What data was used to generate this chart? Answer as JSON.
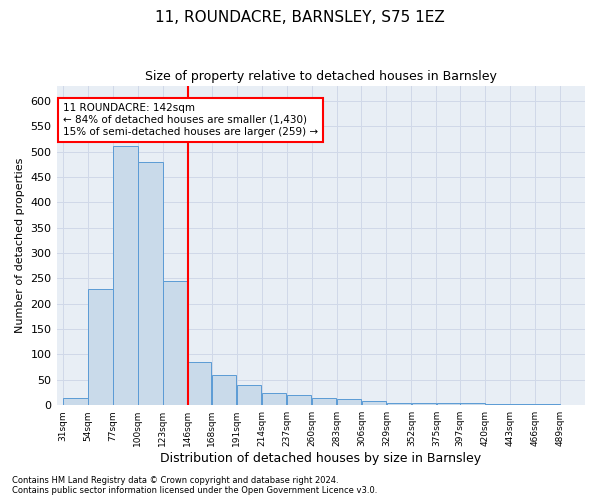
{
  "title1": "11, ROUNDACRE, BARNSLEY, S75 1EZ",
  "title2": "Size of property relative to detached houses in Barnsley",
  "xlabel": "Distribution of detached houses by size in Barnsley",
  "ylabel": "Number of detached properties",
  "footnote1": "Contains HM Land Registry data © Crown copyright and database right 2024.",
  "footnote2": "Contains public sector information licensed under the Open Government Licence v3.0.",
  "annotation_line1": "11 ROUNDACRE: 142sqm",
  "annotation_line2": "← 84% of detached houses are smaller (1,430)",
  "annotation_line3": "15% of semi-detached houses are larger (259) →",
  "bar_color": "#c9daea",
  "bar_edge_color": "#5b9bd5",
  "bar_left_edges": [
    31,
    54,
    77,
    100,
    123,
    146,
    168,
    191,
    214,
    237,
    260,
    283,
    306,
    329,
    352,
    375,
    397,
    420,
    443,
    466
  ],
  "bar_widths": [
    23,
    23,
    23,
    23,
    23,
    22,
    23,
    23,
    23,
    23,
    23,
    23,
    23,
    23,
    23,
    22,
    23,
    23,
    23,
    23
  ],
  "bar_heights": [
    15,
    230,
    510,
    480,
    245,
    85,
    60,
    40,
    25,
    20,
    15,
    12,
    8,
    5,
    5,
    4,
    4,
    2,
    2,
    2
  ],
  "ylim": [
    0,
    630
  ],
  "xlim": [
    25,
    512
  ],
  "yticks": [
    0,
    50,
    100,
    150,
    200,
    250,
    300,
    350,
    400,
    450,
    500,
    550,
    600
  ],
  "xtick_labels": [
    "31sqm",
    "54sqm",
    "77sqm",
    "100sqm",
    "123sqm",
    "146sqm",
    "168sqm",
    "191sqm",
    "214sqm",
    "237sqm",
    "260sqm",
    "283sqm",
    "306sqm",
    "329sqm",
    "352sqm",
    "375sqm",
    "397sqm",
    "420sqm",
    "443sqm",
    "466sqm",
    "489sqm"
  ],
  "xtick_positions": [
    31,
    54,
    77,
    100,
    123,
    146,
    168,
    191,
    214,
    237,
    260,
    283,
    306,
    329,
    352,
    375,
    397,
    420,
    443,
    466,
    489
  ],
  "red_line_x": 146,
  "annotation_box_facecolor": "white",
  "annotation_box_edgecolor": "red",
  "grid_color": "#d0d8e8",
  "bg_color": "#e8eef5",
  "title1_fontsize": 11,
  "title2_fontsize": 9,
  "ylabel_fontsize": 8,
  "xlabel_fontsize": 9,
  "annotation_fontsize": 7.5,
  "xtick_fontsize": 6.5,
  "ytick_fontsize": 8,
  "footnote_fontsize": 6
}
